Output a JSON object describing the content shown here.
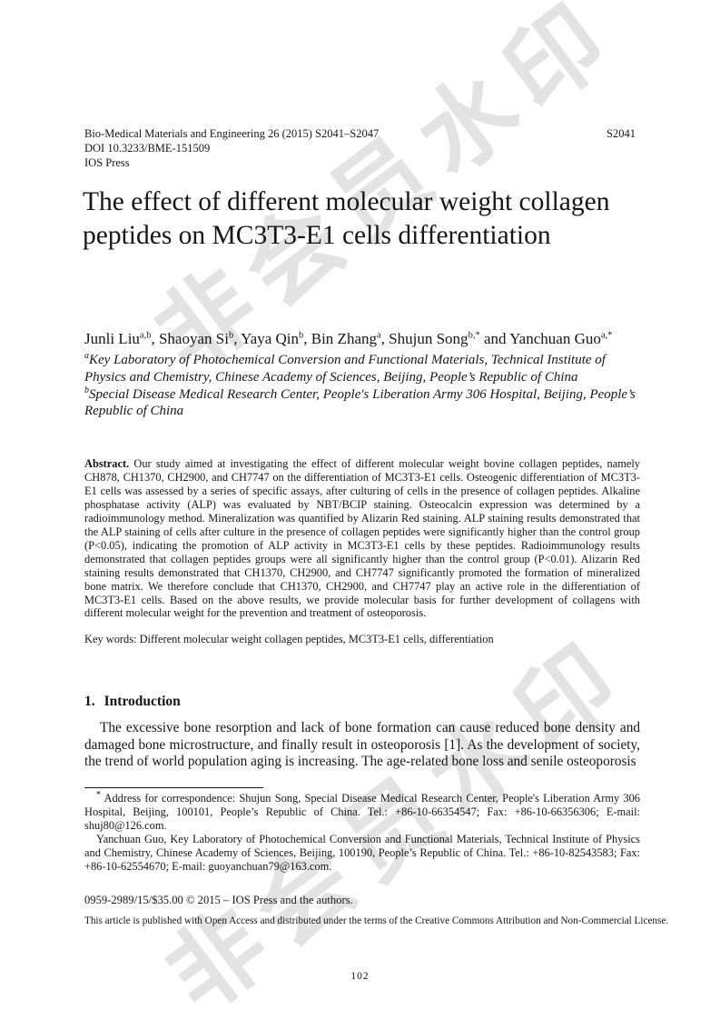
{
  "watermark": {
    "text": "非会员水印"
  },
  "header": {
    "journal": "Bio-Medical Materials and Engineering 26 (2015) S2041–S2047",
    "page_ref": "S2041",
    "doi": "DOI 10.3233/BME-151509",
    "publisher": "IOS Press"
  },
  "article": {
    "title": "The effect of different molecular weight collagen peptides on MC3T3-E1 cells differentiation",
    "authors": [
      {
        "pre": "",
        "name": "Junli Liu",
        "sup": "a,b"
      },
      {
        "pre": ", ",
        "name": "Shaoyan Si",
        "sup": "b"
      },
      {
        "pre": ", ",
        "name": "Yaya Qin",
        "sup": "b"
      },
      {
        "pre": ", ",
        "name": "Bin Zhang",
        "sup": "a"
      },
      {
        "pre": ", ",
        "name": "Shujun Song",
        "sup": "b,*"
      },
      {
        "pre": " and ",
        "name": "Yanchuan Guo",
        "sup": "a,*"
      }
    ],
    "affiliations": [
      {
        "sup": "a",
        "text": "Key Laboratory of Photochemical Conversion and Functional Materials, Technical Institute of Physics and Chemistry, Chinese Academy of Sciences, Beijing, People’s Republic of China"
      },
      {
        "sup": "b",
        "text": "Special Disease Medical Research Center, People's Liberation Army 306 Hospital, Beijing, People’s Republic of China"
      }
    ],
    "abstract": {
      "label": "Abstract.",
      "text": " Our study aimed at investigating the effect of different molecular weight bovine collagen peptides, namely CH878, CH1370, CH2900, and CH7747 on the differentiation of MC3T3-E1 cells. Osteogenic differentiation of MC3T3-E1 cells was assessed by a series of specific assays, after culturing of cells in the presence of collagen peptides. Alkaline phosphatase activity (ALP) was evaluated by NBT/BCIP staining. Osteocalcin expression was determined by a radioimmunology method. Mineralization was quantified by Alizarin Red staining. ALP staining results demonstrated that the ALP staining of cells after culture in the presence of collagen peptides were significantly higher than the control group (P<0.05), indicating the promotion of ALP activity in MC3T3-E1 cells by these peptides. Radioimmunology results demonstrated that collagen peptides groups were all significantly higher than the control group (P<0.01). Alizarin Red staining results demonstrated that CH1370, CH2900, and CH7747 significantly promoted the formation of mineralized bone matrix. We therefore conclude that CH1370, CH2900, and CH7747 play an active role in the differentiation of MC3T3-E1 cells. Based on the above results, we provide molecular basis for further development of collagens with different molecular weight for the prevention and treatment of osteoporosis."
    },
    "keywords": {
      "label": "Key words:",
      "text": " Different molecular weight collagen peptides, MC3T3-E1 cells, differentiation"
    },
    "section": {
      "number": "1.",
      "title": "Introduction"
    },
    "intro_paragraph": "The excessive bone resorption and lack of bone formation can cause reduced bone density and damaged bone microstructure, and finally result in osteoporosis [1]. As the development of society, the trend of world population aging is increasing. The age-related bone loss and senile osteoporosis"
  },
  "footnotes": {
    "marker": "*",
    "correspondence": " Address for correspondence: Shujun Song, Special Disease Medical Research Center, People's Liberation Army 306 Hospital, Beijing, 100101, People’s Republic of China. Tel.: +86-10-66354547; Fax: +86-10-66356306; E-mail: shuj80@126.com.",
    "second": "Yanchuan Guo, Key Laboratory of Photochemical Conversion and Functional Materials, Technical Institute of Physics and Chemistry, Chinese Academy of Sciences, Beijing, 100190, People’s Republic of China. Tel.: +86-10-82543583; Fax: +86-10-62554670; E-mail: guoyanchuan79@163.com."
  },
  "footer": {
    "copyright": "0959-2989/15/$35.00 © 2015 – IOS Press and the authors.",
    "license": "This article is published with Open Access and distributed under the terms of the Creative Commons Attribution and Non-Commercial License.",
    "page_number": "102"
  }
}
